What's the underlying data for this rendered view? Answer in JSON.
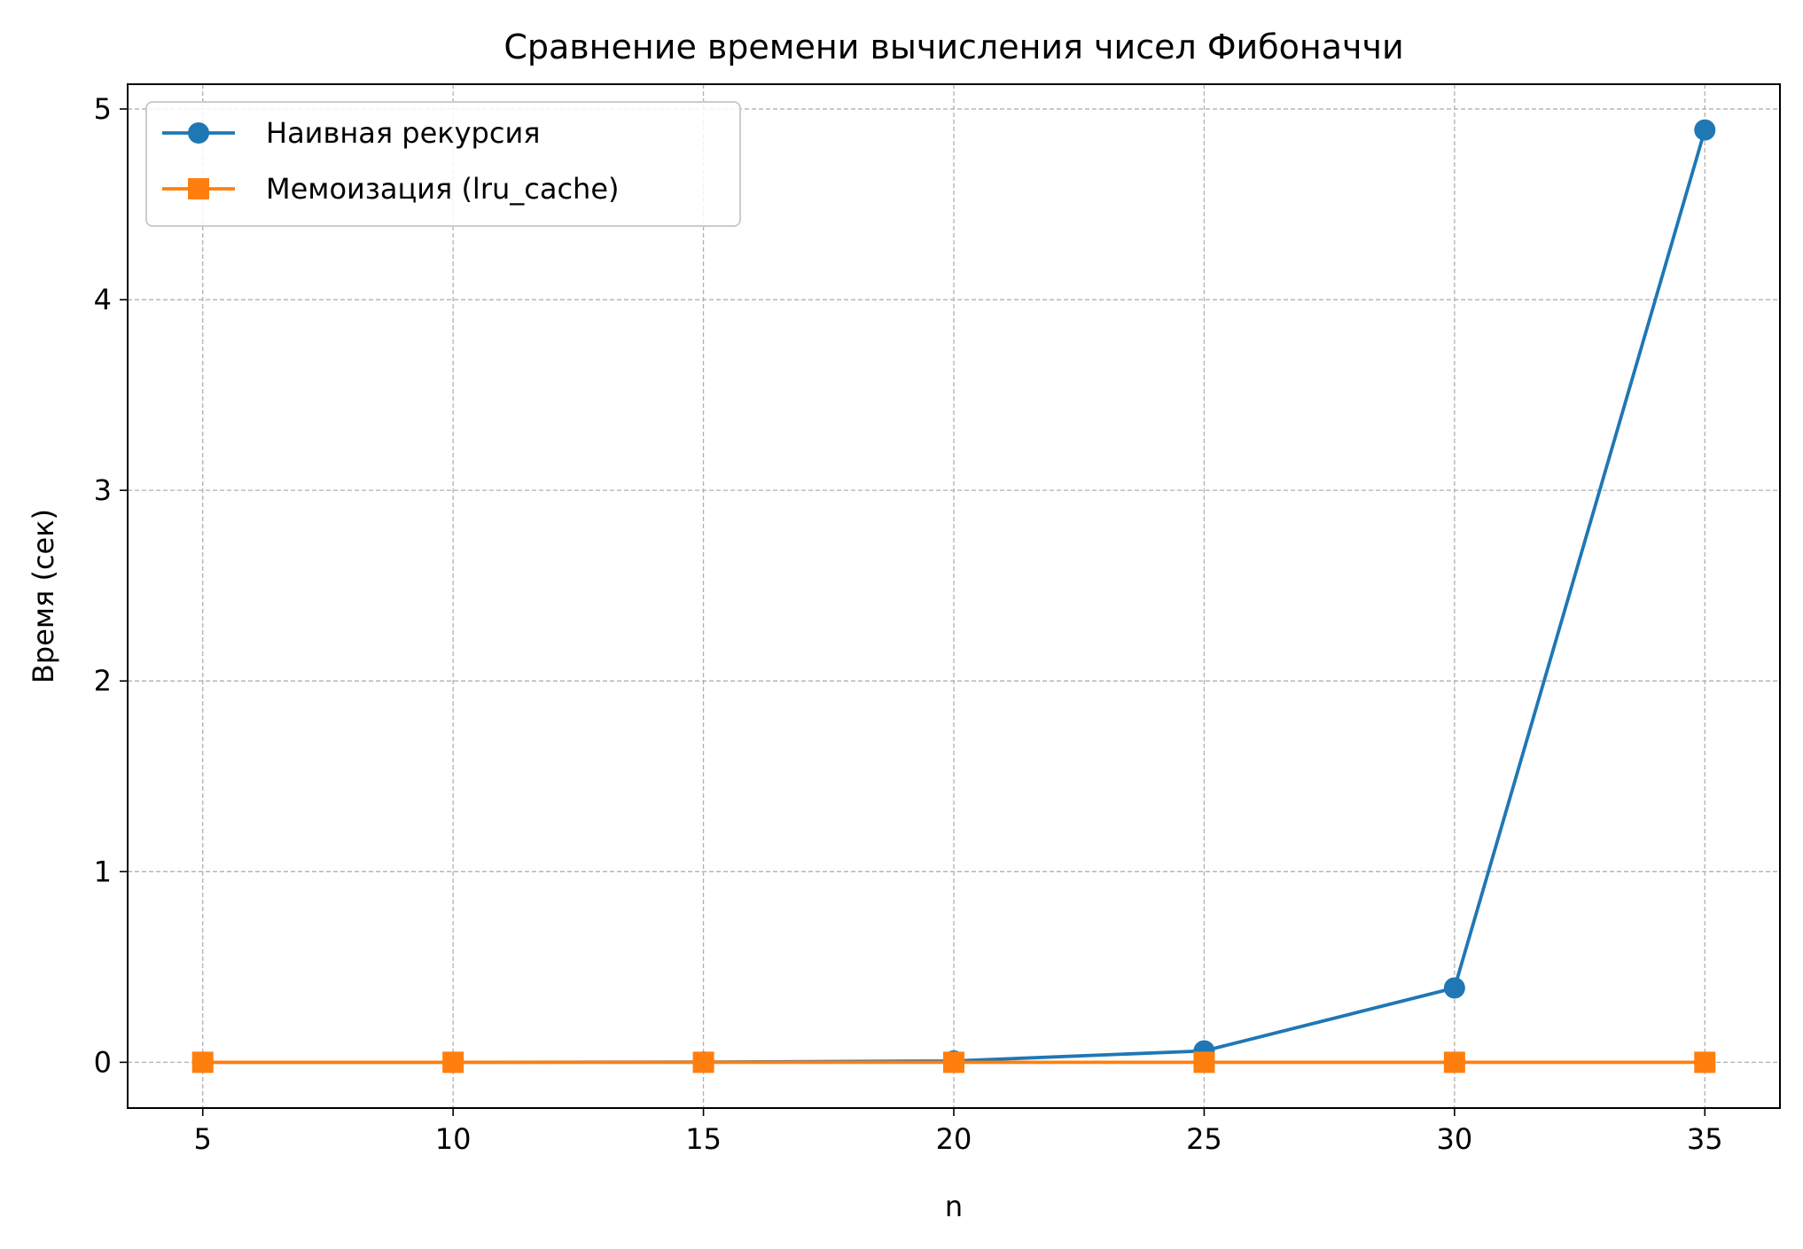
{
  "chart_data": {
    "type": "line",
    "title": "Сравнение времени вычисления чисел Фибоначчи",
    "xlabel": "n",
    "ylabel": "Время (сек)",
    "x": [
      5,
      10,
      15,
      20,
      25,
      30,
      35
    ],
    "xlim": [
      3.5,
      36.5
    ],
    "ylim": [
      -0.24,
      5.13
    ],
    "xticks": [
      "5",
      "10",
      "15",
      "20",
      "25",
      "30",
      "35"
    ],
    "yticks": [
      "0",
      "1",
      "2",
      "3",
      "4",
      "5"
    ],
    "grid": true,
    "legend_position": "upper-left",
    "series": [
      {
        "name": "Наивная рекурсия",
        "color": "#1f77b4",
        "marker": "circle",
        "values": [
          0.0,
          0.0,
          0.001,
          0.007,
          0.06,
          0.39,
          4.89
        ]
      },
      {
        "name": "Мемоизация (lru_cache)",
        "color": "#ff7f0e",
        "marker": "square",
        "values": [
          0.0,
          0.0,
          0.0,
          0.0,
          0.0,
          0.0,
          0.0
        ]
      }
    ]
  }
}
